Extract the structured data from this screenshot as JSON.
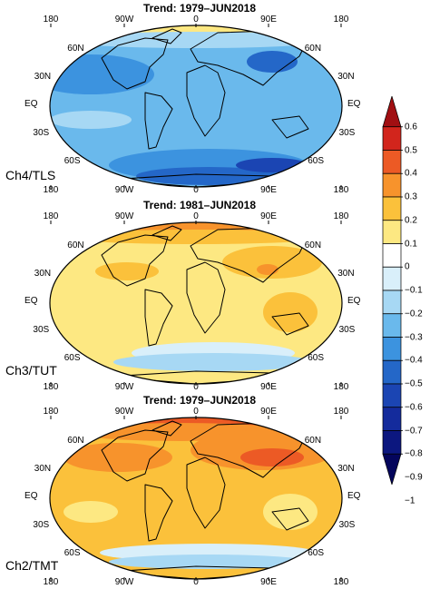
{
  "panels": [
    {
      "title": "Trend: 1979–JUN2018",
      "label": "Ch4/TLS",
      "theme": "cool"
    },
    {
      "title": "Trend: 1981–JUN2018",
      "label": "Ch3/TUT",
      "theme": "mild"
    },
    {
      "title": "Trend: 1979–JUN2018",
      "label": "Ch2/TMT",
      "theme": "warm"
    }
  ],
  "lon_labels": [
    "180",
    "90W",
    "0",
    "90E",
    "180"
  ],
  "lat_labels": [
    "60N",
    "30N",
    "EQ",
    "30S",
    "60S"
  ],
  "colorbar": {
    "ticks": [
      "0.6",
      "0.5",
      "0.4",
      "0.3",
      "0.2",
      "0.1",
      "0",
      "−0.1",
      "−0.2",
      "−0.3",
      "−0.4",
      "−0.5",
      "−0.6",
      "−0.7",
      "−0.8",
      "−0.9",
      "−1"
    ],
    "colors": [
      "#a10f12",
      "#d2251c",
      "#ec5a25",
      "#f7932c",
      "#fbc13b",
      "#fde882",
      "#ffffff",
      "#d9effa",
      "#a7d8f4",
      "#6ab9ec",
      "#3c93df",
      "#2467c8",
      "#1b45b3",
      "#142b9c",
      "#0c177f",
      "#04055c"
    ]
  }
}
